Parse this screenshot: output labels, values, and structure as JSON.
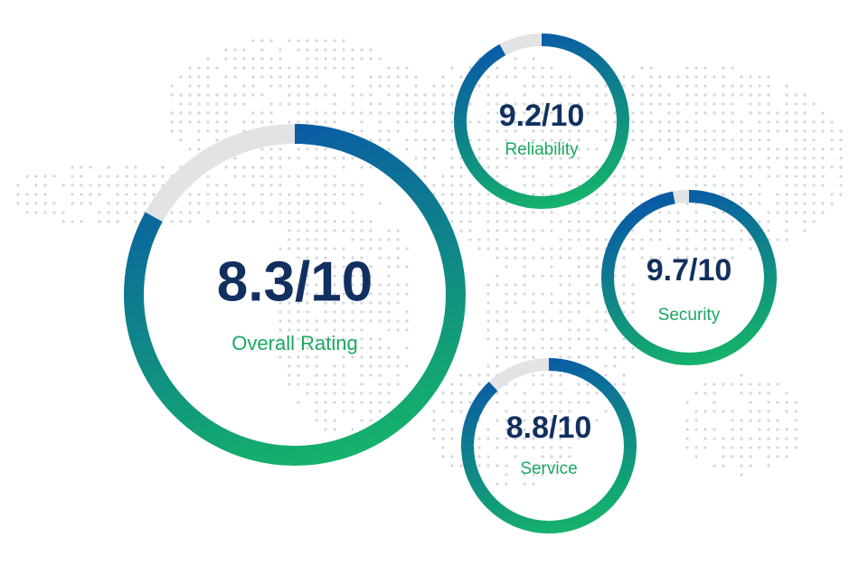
{
  "colors": {
    "ring_green": "#15b26b",
    "ring_blue": "#0a5aa6",
    "ring_track": "#e2e3e5",
    "value_text": "#12305f",
    "label_text": "#1aa860",
    "map_dots": "#d4d6d9"
  },
  "chart_data": {
    "type": "gauge",
    "max": 10,
    "items": [
      {
        "id": "overall",
        "value": 8.3,
        "display": "8.3/10",
        "label": "Overall Rating"
      },
      {
        "id": "reliability",
        "value": 9.2,
        "display": "9.2/10",
        "label": "Reliability"
      },
      {
        "id": "security",
        "value": 9.7,
        "display": "9.7/10",
        "label": "Security"
      },
      {
        "id": "service",
        "value": 8.8,
        "display": "8.8/10",
        "label": "Service"
      }
    ]
  }
}
